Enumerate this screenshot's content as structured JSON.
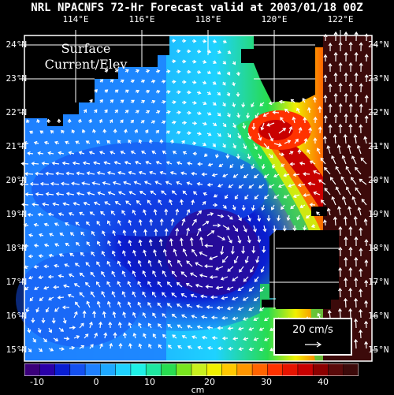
{
  "title": "NRL NPACNFS 72-Hr Forecast valid at 2003/01/18 00Z",
  "map_label_line1": "Surface",
  "map_label_line2": "Current/Elev",
  "lon_labels": [
    "114°E",
    "116°E",
    "118°E",
    "120°E",
    "122°E"
  ],
  "lat_labels": [
    "24°N",
    "23°N",
    "22°N",
    "21°N",
    "20°N",
    "19°N",
    "18°N",
    "17°N",
    "16°N",
    "15°N"
  ],
  "scale_label": "20 cm/s",
  "colorbar": {
    "unit": "cm",
    "ticks": [
      "-10",
      "0",
      "10",
      "20",
      "30",
      "40"
    ],
    "colors": [
      "#3b007a",
      "#2a00a8",
      "#0a1ed2",
      "#1450f0",
      "#1e80ff",
      "#1ea8ff",
      "#1ed2ff",
      "#1ef0e6",
      "#1ee6a0",
      "#28dc50",
      "#78e61e",
      "#c8f01e",
      "#f0f000",
      "#ffc800",
      "#ff9600",
      "#ff6400",
      "#ff3200",
      "#e61400",
      "#c80000",
      "#8c0000",
      "#5a0a0a",
      "#3c0a0a"
    ]
  },
  "colors": {
    "land": "#000000",
    "grid": "#ffffff",
    "vectors": "#ffffff"
  }
}
